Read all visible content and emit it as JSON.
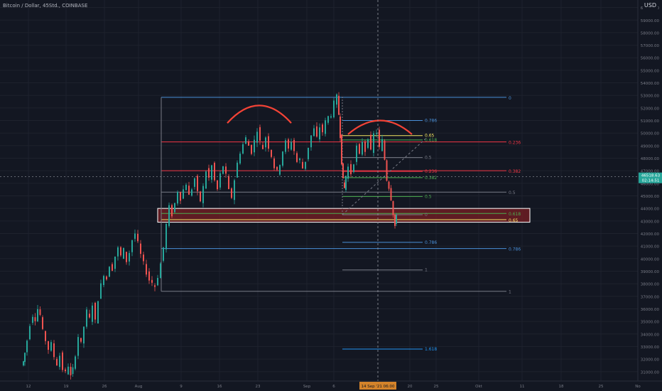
{
  "header": {
    "symbol_title": "Bitcoin / Dollar, 45Std., COINBASE",
    "currency": "USD"
  },
  "colors": {
    "background": "#131722",
    "grid": "#1e222d",
    "up": "#26a69a",
    "down": "#ef5350",
    "axis_text": "#787b86",
    "fib_blue": "#4a90d9",
    "fib_red": "#f23645",
    "fib_green": "#4caf50",
    "fib_gray": "#787b86",
    "fib_yellow": "#f5e663",
    "zone_fill": "#7a1f24",
    "arc": "#f44336"
  },
  "chart_data": {
    "type": "candlestick",
    "y_axis": {
      "ylim": [
        30250,
        60600
      ],
      "ticks": [
        31000,
        32000,
        33000,
        34000,
        35000,
        36000,
        37000,
        38000,
        39000,
        40000,
        41000,
        42000,
        43000,
        44000,
        45000,
        46000,
        47000,
        48000,
        49000,
        50000,
        51000,
        52000,
        53000,
        54000,
        55000,
        56000,
        57000,
        58000,
        59000,
        60000
      ],
      "tick_labels": [
        "31000.00",
        "32000.00",
        "33000.00",
        "34000.00",
        "35000.00",
        "36000.00",
        "37000.00",
        "38000.00",
        "39000.00",
        "40000.00",
        "41000.00",
        "42000.00",
        "43000.00",
        "44000.00",
        "45000.00",
        "46000.00",
        "47000.00",
        "48000.00",
        "49000.00",
        "50000.00",
        "51000.00",
        "52000.00",
        "53000.00",
        "54000.00",
        "55000.00",
        "56000.00",
        "57000.00",
        "58000.00",
        "59000.00",
        "60000.00"
      ],
      "top_label": "6C"
    },
    "x_axis": {
      "tick_labels": [
        "12",
        "19",
        "26",
        "Aug",
        "9",
        "16",
        "23",
        "Sep",
        "6",
        "20",
        "25",
        "Okt",
        "11",
        "18",
        "25",
        "No"
      ],
      "crosshair_label": "14 Sep '21   06:00"
    },
    "last_price": {
      "value": 46518.63,
      "label": "46518.63",
      "countdown": "02:14:51"
    },
    "crosshair_price": 44200,
    "price_path": [
      [
        32000,
        31500
      ],
      [
        34000,
        31800
      ],
      [
        36000,
        32500
      ],
      [
        40000,
        33500
      ],
      [
        44000,
        34800
      ],
      [
        48000,
        35500
      ],
      [
        51000,
        35200
      ],
      [
        55000,
        36000
      ],
      [
        58000,
        35500
      ],
      [
        62000,
        34200
      ],
      [
        66000,
        33500
      ],
      [
        70000,
        32800
      ],
      [
        74000,
        33200
      ],
      [
        78000,
        32200
      ],
      [
        82000,
        31600
      ],
      [
        86000,
        32300
      ],
      [
        90000,
        31200
      ],
      [
        94000,
        30900
      ],
      [
        98000,
        31500
      ],
      [
        101000,
        30600
      ],
      [
        104000,
        31200
      ],
      [
        108000,
        32400
      ],
      [
        112000,
        33800
      ],
      [
        116000,
        33200
      ],
      [
        120000,
        34600
      ],
      [
        124000,
        35800
      ],
      [
        128000,
        35200
      ],
      [
        132000,
        36400
      ],
      [
        136000,
        35000
      ],
      [
        140000,
        36800
      ],
      [
        144000,
        37900
      ],
      [
        148000,
        38800
      ],
      [
        152000,
        38400
      ],
      [
        156000,
        39500
      ],
      [
        160000,
        39200
      ],
      [
        164000,
        40200
      ],
      [
        168000,
        40800
      ],
      [
        172000,
        40200
      ],
      [
        176000,
        40700
      ],
      [
        180000,
        39800
      ],
      [
        184000,
        40500
      ],
      [
        188000,
        41500
      ],
      [
        192000,
        42000
      ],
      [
        196000,
        41200
      ],
      [
        200000,
        40300
      ],
      [
        204000,
        39600
      ],
      [
        208000,
        38900
      ],
      [
        212000,
        38300
      ],
      [
        216000,
        38100
      ],
      [
        220000,
        37800
      ],
      [
        224000,
        38600
      ],
      [
        228000,
        39600
      ],
      [
        232000,
        40900
      ],
      [
        236000,
        42700
      ],
      [
        240000,
        44100
      ],
      [
        244000,
        43500
      ],
      [
        248000,
        44400
      ],
      [
        252000,
        45400
      ],
      [
        256000,
        44800
      ],
      [
        260000,
        45500
      ],
      [
        264000,
        46000
      ],
      [
        268000,
        45000
      ],
      [
        272000,
        45600
      ],
      [
        276000,
        46400
      ],
      [
        280000,
        45200
      ],
      [
        284000,
        44600
      ],
      [
        288000,
        45700
      ],
      [
        292000,
        47000
      ],
      [
        296000,
        46400
      ],
      [
        300000,
        47400
      ],
      [
        304000,
        46200
      ],
      [
        308000,
        45500
      ],
      [
        312000,
        46700
      ],
      [
        316000,
        47400
      ],
      [
        320000,
        46600
      ],
      [
        324000,
        45400
      ],
      [
        328000,
        44900
      ],
      [
        332000,
        46300
      ],
      [
        336000,
        47600
      ],
      [
        340000,
        48500
      ],
      [
        344000,
        49100
      ],
      [
        348000,
        49600
      ],
      [
        352000,
        49000
      ],
      [
        356000,
        48500
      ],
      [
        360000,
        49400
      ],
      [
        364000,
        50300
      ],
      [
        368000,
        49300
      ],
      [
        372000,
        48800
      ],
      [
        376000,
        49700
      ],
      [
        380000,
        48900
      ],
      [
        384000,
        48200
      ],
      [
        388000,
        47300
      ],
      [
        392000,
        46900
      ],
      [
        396000,
        47600
      ],
      [
        400000,
        48600
      ],
      [
        404000,
        49300
      ],
      [
        408000,
        48700
      ],
      [
        412000,
        49400
      ],
      [
        416000,
        48600
      ],
      [
        420000,
        47700
      ],
      [
        424000,
        47900
      ],
      [
        428000,
        47200
      ],
      [
        432000,
        47800
      ],
      [
        436000,
        48900
      ],
      [
        440000,
        49800
      ],
      [
        444000,
        50300
      ],
      [
        448000,
        49600
      ],
      [
        452000,
        50500
      ],
      [
        456000,
        50100
      ],
      [
        460000,
        50900
      ],
      [
        464000,
        51300
      ],
      [
        468000,
        51500
      ],
      [
        472000,
        52400
      ],
      [
        476000,
        52900
      ],
      [
        478000,
        51500
      ],
      [
        480000,
        49800
      ],
      [
        482000,
        47700
      ],
      [
        484000,
        46200
      ],
      [
        486000,
        45600
      ],
      [
        488000,
        46600
      ],
      [
        492000,
        47300
      ],
      [
        496000,
        46800
      ],
      [
        500000,
        47700
      ],
      [
        504000,
        48900
      ],
      [
        508000,
        48200
      ],
      [
        512000,
        49400
      ],
      [
        516000,
        48600
      ],
      [
        520000,
        49700
      ],
      [
        524000,
        48500
      ],
      [
        528000,
        49900
      ],
      [
        532000,
        50100
      ],
      [
        536000,
        48800
      ],
      [
        540000,
        49400
      ],
      [
        543000,
        47900
      ],
      [
        546000,
        46300
      ],
      [
        549000,
        45700
      ],
      [
        552000,
        44800
      ],
      [
        555000,
        43600
      ],
      [
        557000,
        42600
      ],
      [
        559000,
        43300
      ]
    ],
    "fib_levels": [
      {
        "label": "0",
        "value": 52850,
        "x1": 227000,
        "x2": 713000,
        "color": "#4a90d9",
        "mid_label": "1"
      },
      {
        "label": "0.236",
        "value": 49300,
        "x1": 227000,
        "x2": 713000,
        "color": "#f23645"
      },
      {
        "label": "0.382",
        "value": 47000,
        "x1": 227000,
        "x2": 713000,
        "color": "#f23645"
      },
      {
        "label": "0.5",
        "value": 45300,
        "x1": 227000,
        "x2": 713000,
        "color": "#787b86"
      },
      {
        "label": "0.618",
        "value": 43600,
        "x1": 227000,
        "x2": 713000,
        "color": "#4caf50"
      },
      {
        "label": "0.65",
        "value": 43100,
        "x1": 227000,
        "x2": 713000,
        "color": "#f5e663"
      },
      {
        "label": "0.786",
        "value": 40800,
        "x1": 227000,
        "x2": 713000,
        "color": "#4a90d9"
      },
      {
        "label": "1",
        "value": 37400,
        "x1": 227000,
        "x2": 713000,
        "color": "#787b86"
      }
    ],
    "fib2_levels": [
      {
        "label": "0.786",
        "value": 51000,
        "x1": 482000,
        "x2": 595000,
        "color": "#4a90d9"
      },
      {
        "label": "0.65",
        "value": 49800,
        "x1": 482000,
        "x2": 595000,
        "color": "#f5e663"
      },
      {
        "label": "0.618",
        "value": 49450,
        "x1": 482000,
        "x2": 595000,
        "color": "#4caf50"
      },
      {
        "label": "0.5",
        "value": 48050,
        "x1": 482000,
        "x2": 595000,
        "color": "#787b86"
      },
      {
        "label": "0.382",
        "value": 46450,
        "x1": 482000,
        "x2": 595000,
        "color": "#4caf50"
      },
      {
        "label": "0.236",
        "value": 46950,
        "x1": 482000,
        "x2": 595000,
        "color": "#f23645"
      },
      {
        "label": "0.5",
        "value": 44950,
        "x1": 482000,
        "x2": 595000,
        "color": "#4caf50"
      },
      {
        "label": "0",
        "value": 43500,
        "x1": 482000,
        "x2": 595000,
        "color": "#787b86"
      },
      {
        "label": "0.786",
        "value": 41300,
        "x1": 482000,
        "x2": 595000,
        "color": "#4a90d9"
      },
      {
        "label": "1",
        "value": 39100,
        "x1": 482000,
        "x2": 595000,
        "color": "#787b86"
      },
      {
        "label": "1.618",
        "value": 32800,
        "x1": 482000,
        "x2": 595000,
        "color": "#2196f3"
      }
    ],
    "zone": {
      "top": 44000,
      "bottom": 42900,
      "x1": 222000,
      "x2": 746000
    },
    "arcs": [
      {
        "x1": 320000,
        "x2": 410000,
        "base": 50800,
        "peak": 52200
      },
      {
        "x1": 490000,
        "x2": 580000,
        "base": 49900,
        "peak": 51000
      }
    ]
  }
}
